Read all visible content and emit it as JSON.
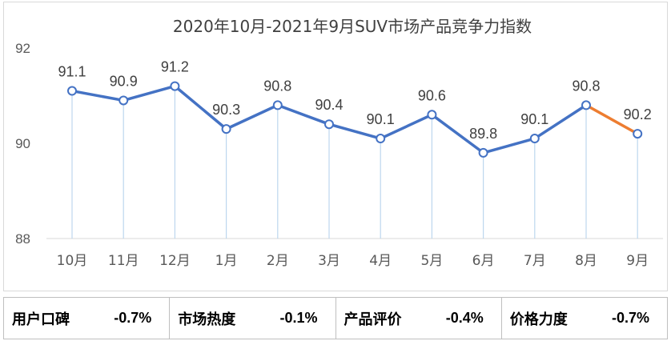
{
  "chart_data": {
    "type": "line",
    "title": "2020年10月-2021年9月SUV市场产品竞争力指数",
    "categories": [
      "10月",
      "11月",
      "12月",
      "1月",
      "2月",
      "3月",
      "4月",
      "5月",
      "6月",
      "7月",
      "8月",
      "9月"
    ],
    "values": [
      91.1,
      90.9,
      91.2,
      90.3,
      90.8,
      90.4,
      90.1,
      90.6,
      89.8,
      90.1,
      90.8,
      90.2
    ],
    "data_labels": [
      "91.1",
      "90.9",
      "91.2",
      "90.3",
      "90.8",
      "90.4",
      "90.1",
      "90.6",
      "89.8",
      "90.1",
      "90.8",
      "90.2"
    ],
    "ylim": [
      88,
      92
    ],
    "yticks": [
      88,
      90,
      92
    ],
    "ytick_labels": [
      "88",
      "90",
      "92"
    ],
    "grid": false,
    "colors": {
      "line": "#4472c4",
      "last_segment": "#ed7d31",
      "drop_line": "#bdd7ee"
    }
  },
  "indicators": [
    {
      "label": "用户口碑",
      "value": "-0.7%"
    },
    {
      "label": "市场热度",
      "value": "-0.1%"
    },
    {
      "label": "产品评价",
      "value": "-0.4%"
    },
    {
      "label": "价格力度",
      "value": "-0.7%"
    }
  ]
}
